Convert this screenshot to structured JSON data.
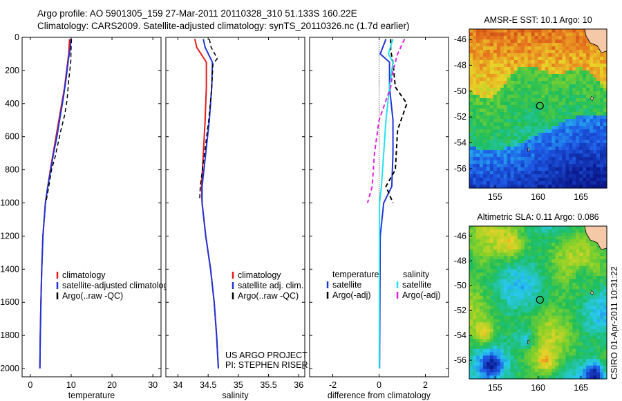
{
  "header": {
    "line1": "Argo profile: AO 5901305_159 27-Mar-2011 20110328_310 51.133S 160.22E",
    "line2": "Climatology: CARS2009. Satellite-adjusted climatology: synTS_20110326.nc (1.7d earlier)"
  },
  "credit": {
    "project": "US ARGO PROJECT",
    "pi": "PI: STEPHEN RISER",
    "stamp": "CSIRO 01-Apr-2011 10:31:22"
  },
  "colors": {
    "climatology": "#e41a1c",
    "satellite": "#1f35d6",
    "argo": "#000000",
    "sat_diff": "#22e0ee",
    "argo_diff": "#e020e0",
    "deep_blue": "#0b1e8c",
    "green": "#22c94a",
    "red_brown": "#a01a0a"
  },
  "chart_data": [
    {
      "type": "line",
      "id": "temperature",
      "xlabel": "temperature",
      "xlim": [
        -2,
        32
      ],
      "ylim": [
        2050,
        0
      ],
      "xticks": [
        "0",
        "10",
        "20",
        "30"
      ],
      "yticks": [
        "0",
        "200",
        "400",
        "600",
        "800",
        "1000",
        "1200",
        "1400",
        "1600",
        "1800",
        "2000"
      ],
      "legend": [
        "climatology",
        "satellite-adjusted climatology",
        "Argo(..raw -QC)"
      ],
      "series": [
        {
          "name": "climatology",
          "points": [
            [
              9.6,
              10
            ],
            [
              9.4,
              100
            ],
            [
              8.9,
              200
            ],
            [
              8.4,
              300
            ],
            [
              7.7,
              400
            ],
            [
              7.0,
              500
            ],
            [
              6.3,
              600
            ],
            [
              5.6,
              700
            ],
            [
              4.9,
              800
            ],
            [
              4.3,
              900
            ],
            [
              3.7,
              1000
            ],
            [
              3.1,
              1200
            ],
            [
              2.8,
              1400
            ],
            [
              2.6,
              1600
            ],
            [
              2.45,
              1800
            ],
            [
              2.35,
              2000
            ]
          ]
        },
        {
          "name": "satellite-adjusted climatology",
          "points": [
            [
              9.9,
              10
            ],
            [
              9.8,
              60
            ],
            [
              9.3,
              140
            ],
            [
              8.7,
              260
            ],
            [
              8.0,
              380
            ],
            [
              7.3,
              480
            ],
            [
              6.5,
              600
            ],
            [
              5.7,
              700
            ],
            [
              5.0,
              800
            ],
            [
              4.3,
              900
            ],
            [
              3.7,
              1000
            ],
            [
              3.1,
              1200
            ],
            [
              2.8,
              1400
            ],
            [
              2.6,
              1600
            ],
            [
              2.45,
              1800
            ],
            [
              2.35,
              2000
            ]
          ]
        },
        {
          "name": "Argo(..raw -QC)",
          "points": [
            [
              10.1,
              10
            ],
            [
              10.0,
              60
            ],
            [
              9.9,
              150
            ],
            [
              9.4,
              260
            ],
            [
              9.0,
              380
            ],
            [
              8.4,
              470
            ],
            [
              7.5,
              560
            ],
            [
              6.8,
              640
            ],
            [
              6.1,
              720
            ],
            [
              5.2,
              800
            ],
            [
              4.4,
              920
            ],
            [
              3.8,
              1000
            ]
          ]
        }
      ]
    },
    {
      "type": "line",
      "id": "salinity",
      "xlabel": "salinity",
      "xlim": [
        33.8,
        36.1
      ],
      "ylim": [
        2050,
        0
      ],
      "xticks": [
        "34",
        "34.5",
        "35",
        "35.5",
        "36"
      ],
      "yticks": [],
      "legend": [
        "climatology",
        "satellite adj. clim.",
        "Argo(..raw -QC)"
      ],
      "series": [
        {
          "name": "climatology",
          "points": [
            [
              34.28,
              10
            ],
            [
              34.31,
              60
            ],
            [
              34.47,
              150
            ],
            [
              34.47,
              300
            ],
            [
              34.45,
              500
            ],
            [
              34.42,
              700
            ],
            [
              34.39,
              900
            ],
            [
              34.4,
              1000
            ],
            [
              34.46,
              1200
            ],
            [
              34.54,
              1400
            ],
            [
              34.6,
              1600
            ],
            [
              34.64,
              1800
            ],
            [
              34.67,
              2000
            ]
          ]
        },
        {
          "name": "satellite adj. clim.",
          "points": [
            [
              34.42,
              10
            ],
            [
              34.45,
              60
            ],
            [
              34.57,
              150
            ],
            [
              34.56,
              300
            ],
            [
              34.52,
              500
            ],
            [
              34.46,
              700
            ],
            [
              34.4,
              900
            ],
            [
              34.4,
              1000
            ],
            [
              34.46,
              1200
            ],
            [
              34.54,
              1400
            ],
            [
              34.6,
              1600
            ],
            [
              34.64,
              1800
            ],
            [
              34.67,
              2000
            ]
          ]
        },
        {
          "name": "Argo(..raw -QC)",
          "points": [
            [
              34.52,
              10
            ],
            [
              34.55,
              60
            ],
            [
              34.61,
              100
            ],
            [
              34.65,
              130
            ],
            [
              34.58,
              160
            ],
            [
              34.56,
              300
            ],
            [
              34.51,
              500
            ],
            [
              34.44,
              700
            ],
            [
              34.37,
              900
            ],
            [
              34.36,
              980
            ]
          ]
        }
      ]
    },
    {
      "type": "line",
      "id": "difference",
      "xlabel": "difference from climatology",
      "xlim": [
        -3,
        3
      ],
      "ylim": [
        2050,
        0
      ],
      "xticks": [
        "-2",
        "0",
        "2"
      ],
      "yticks": [],
      "legend_headers": [
        "temperature",
        "salinity"
      ],
      "legend": [
        "satellite",
        "Argo(-adj)",
        "satellite",
        "Argo(-adj)"
      ],
      "series": [
        {
          "name": "satellite",
          "quantity": "temperature",
          "points": [
            [
              0.3,
              10
            ],
            [
              0.05,
              100
            ],
            [
              0.45,
              150
            ],
            [
              0.45,
              300
            ],
            [
              0.6,
              500
            ],
            [
              0.6,
              700
            ],
            [
              0.55,
              900
            ],
            [
              0.2,
              1000
            ],
            [
              0.05,
              1200
            ],
            [
              0.02,
              2000
            ]
          ]
        },
        {
          "name": "Argo(-adj)",
          "quantity": "temperature",
          "points": [
            [
              0.5,
              10
            ],
            [
              0.5,
              80
            ],
            [
              0.6,
              150
            ],
            [
              0.7,
              300
            ],
            [
              1.2,
              400
            ],
            [
              0.8,
              560
            ],
            [
              0.7,
              800
            ],
            [
              0.3,
              900
            ],
            [
              0.6,
              1000
            ]
          ]
        },
        {
          "name": "satellite",
          "quantity": "salinity",
          "points": [
            [
              0.6,
              10
            ],
            [
              0.4,
              100
            ],
            [
              0.6,
              150
            ],
            [
              0.45,
              300
            ],
            [
              0.3,
              500
            ],
            [
              0.2,
              700
            ],
            [
              0.1,
              900
            ],
            [
              0.02,
              1000
            ],
            [
              0.01,
              2000
            ]
          ]
        },
        {
          "name": "Argo(-adj)",
          "quantity": "salinity",
          "points": [
            [
              1.1,
              10
            ],
            [
              0.8,
              100
            ],
            [
              0.6,
              200
            ],
            [
              0.5,
              300
            ],
            [
              0.0,
              500
            ],
            [
              -0.2,
              700
            ],
            [
              -0.3,
              900
            ],
            [
              -0.5,
              1000
            ]
          ]
        }
      ]
    },
    {
      "type": "heatmap",
      "id": "amsre-sst",
      "title": "AMSR-E SST: 10.1 Argo: 10",
      "xlim": [
        152,
        168
      ],
      "ylim": [
        -57.5,
        -45.2
      ],
      "xticks": [
        "155",
        "160",
        "165"
      ],
      "yticks": [
        "-46",
        "-48",
        "-50",
        "-52",
        "-54",
        "-56"
      ],
      "marker": [
        160.22,
        -51.133
      ]
    },
    {
      "type": "heatmap",
      "id": "altimetric-sla",
      "title": "Altimetric SLA: 0.11 Argo: 0.086",
      "xlim": [
        152,
        168
      ],
      "ylim": [
        -57.5,
        -45.2
      ],
      "xticks": [
        "155",
        "160",
        "165"
      ],
      "yticks": [
        "-46",
        "-48",
        "-50",
        "-52",
        "-54",
        "-56"
      ],
      "marker": [
        160.22,
        -51.133
      ]
    }
  ]
}
